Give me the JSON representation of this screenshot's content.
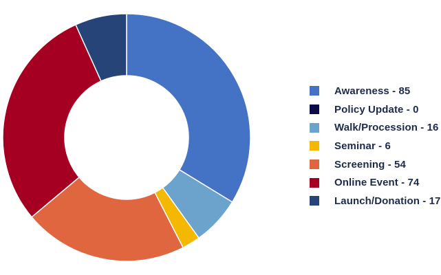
{
  "chart_data": {
    "type": "pie",
    "style": "donut",
    "legend_position": "right",
    "categories": [
      "Awareness",
      "Policy Update",
      "Walk/Procession",
      "Seminar",
      "Screening",
      "Online Event",
      "Launch/Donation"
    ],
    "values": [
      85,
      0,
      16,
      6,
      54,
      74,
      17
    ],
    "colors": [
      "#4472c4",
      "#0d0a4a",
      "#6ba3cc",
      "#f5b800",
      "#e06640",
      "#a50021",
      "#264478"
    ],
    "legend_labels": [
      "Awareness - 85",
      "Policy Update - 0",
      "Walk/Procession - 16",
      "Seminar - 6",
      "Screening - 54",
      "Online Event - 74",
      "Launch/Donation - 17"
    ]
  }
}
